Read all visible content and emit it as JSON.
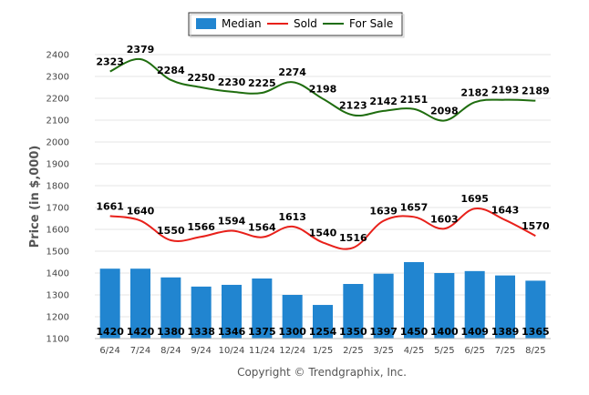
{
  "chart_data": {
    "type": "bar",
    "title": "",
    "xlabel": "",
    "ylabel": "Price (in $,000)",
    "ylim": [
      1100,
      2400
    ],
    "yticks": [
      1100,
      1200,
      1300,
      1400,
      1500,
      1600,
      1700,
      1800,
      1900,
      2000,
      2100,
      2200,
      2300,
      2400
    ],
    "grid": true,
    "legend_position": "top-center",
    "categories": [
      "6/24",
      "7/24",
      "8/24",
      "9/24",
      "10/24",
      "11/24",
      "12/24",
      "1/25",
      "2/25",
      "3/25",
      "4/25",
      "5/25",
      "6/25",
      "7/25",
      "8/25"
    ],
    "series": [
      {
        "name": "Median",
        "type": "bar",
        "color": "#2185d0",
        "values": [
          1420,
          1420,
          1380,
          1338,
          1346,
          1375,
          1300,
          1254,
          1350,
          1397,
          1450,
          1400,
          1409,
          1389,
          1365
        ]
      },
      {
        "name": "Sold",
        "type": "line",
        "color": "#e8201a",
        "values": [
          1661,
          1640,
          1550,
          1566,
          1594,
          1564,
          1613,
          1540,
          1516,
          1639,
          1657,
          1603,
          1695,
          1643,
          1570
        ]
      },
      {
        "name": "For Sale",
        "type": "line",
        "color": "#1f6d0f",
        "values": [
          2323,
          2379,
          2284,
          2250,
          2230,
          2225,
          2274,
          2198,
          2123,
          2142,
          2151,
          2098,
          2182,
          2193,
          2189
        ]
      }
    ]
  },
  "footer": {
    "copyright": "Copyright © Trendgraphix, Inc."
  }
}
